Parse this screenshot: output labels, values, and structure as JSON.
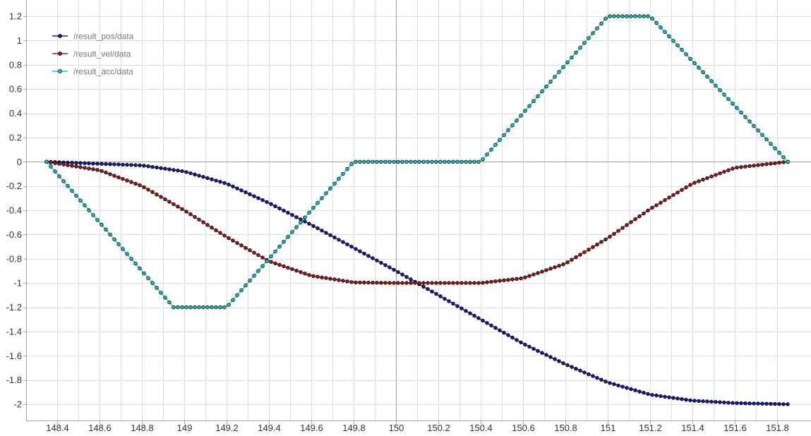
{
  "chart_data": {
    "type": "scatter",
    "x_range": [
      148.33,
      151.88
    ],
    "y_range": [
      -2.16,
      1.3
    ],
    "x_ticks": [
      148.4,
      148.6,
      148.8,
      149,
      149.2,
      149.4,
      149.6,
      149.8,
      150,
      150.2,
      150.4,
      150.6,
      150.8,
      151,
      151.2,
      151.4,
      151.6,
      151.8
    ],
    "x_tick_labels": [
      "148.4",
      "148.6",
      "148.8",
      "149",
      "149.2",
      "149.4",
      "149.6",
      "149.8",
      "150",
      "150.2",
      "150.4",
      "150.6",
      "150.8",
      "151",
      "151.2",
      "151.4",
      "151.6",
      "151.8"
    ],
    "y_ticks": [
      1.2,
      1,
      0.8,
      0.6,
      0.4,
      0.2,
      0,
      -0.2,
      -0.4,
      -0.6,
      -0.8,
      -1,
      -1.2,
      -1.4,
      -1.6,
      -1.8,
      -2
    ],
    "y_tick_labels": [
      "1.2",
      "1",
      "0.8",
      "0.6",
      "0.4",
      "0.2",
      "0",
      "-0.2",
      "-0.4",
      "-0.6",
      "-0.8",
      "-1",
      "-1.2",
      "-1.4",
      "-1.6",
      "-1.8",
      "-2"
    ],
    "x_minor_step": 0.1,
    "grid": true,
    "zero_lines": {
      "x": 150,
      "y": 0
    },
    "legend_position": "top-left",
    "x_start": 148.35,
    "x_end": 151.85,
    "x_step": 0.02,
    "series": [
      {
        "name": "/result_pos/data",
        "line_color": "#1a1aa8",
        "marker_fill": "#1a1a9a",
        "points": [
          [
            148.35,
            0
          ],
          [
            148.8,
            -0.03
          ],
          [
            149,
            -0.08
          ],
          [
            149.2,
            -0.18
          ],
          [
            149.4,
            -0.34
          ],
          [
            149.6,
            -0.52
          ],
          [
            149.8,
            -0.71
          ],
          [
            150,
            -0.9
          ],
          [
            150.2,
            -1.1
          ],
          [
            150.4,
            -1.3
          ],
          [
            150.6,
            -1.5
          ],
          [
            150.8,
            -1.67
          ],
          [
            151,
            -1.82
          ],
          [
            151.2,
            -1.92
          ],
          [
            151.4,
            -1.97
          ],
          [
            151.6,
            -1.99
          ],
          [
            151.85,
            -2
          ]
        ]
      },
      {
        "name": "/result_vel/data",
        "line_color": "#a82020",
        "marker_fill": "#9a1a1a",
        "points": [
          [
            148.35,
            0
          ],
          [
            148.6,
            -0.07
          ],
          [
            148.8,
            -0.2
          ],
          [
            149,
            -0.4
          ],
          [
            149.2,
            -0.62
          ],
          [
            149.4,
            -0.82
          ],
          [
            149.6,
            -0.94
          ],
          [
            149.8,
            -0.995
          ],
          [
            150,
            -1
          ],
          [
            150.2,
            -1
          ],
          [
            150.4,
            -1
          ],
          [
            150.6,
            -0.96
          ],
          [
            150.8,
            -0.84
          ],
          [
            151,
            -0.63
          ],
          [
            151.2,
            -0.39
          ],
          [
            151.4,
            -0.18
          ],
          [
            151.6,
            -0.05
          ],
          [
            151.85,
            0
          ]
        ]
      },
      {
        "name": "/result_acc/data",
        "line_color": "#20c8c8",
        "marker_fill": "#22c4c4",
        "points": [
          [
            148.35,
            0
          ],
          [
            148.95,
            -1.2
          ],
          [
            149.2,
            -1.2
          ],
          [
            149.8,
            0
          ],
          [
            150.4,
            0
          ],
          [
            151,
            1.2
          ],
          [
            151.2,
            1.2
          ],
          [
            151.85,
            0
          ]
        ]
      }
    ]
  },
  "colors": {
    "grid": "#dedede",
    "zero_line": "#9e9e9e",
    "axis": "#a6a6a6",
    "tick_text": "#333333",
    "legend_text": "#777777"
  }
}
